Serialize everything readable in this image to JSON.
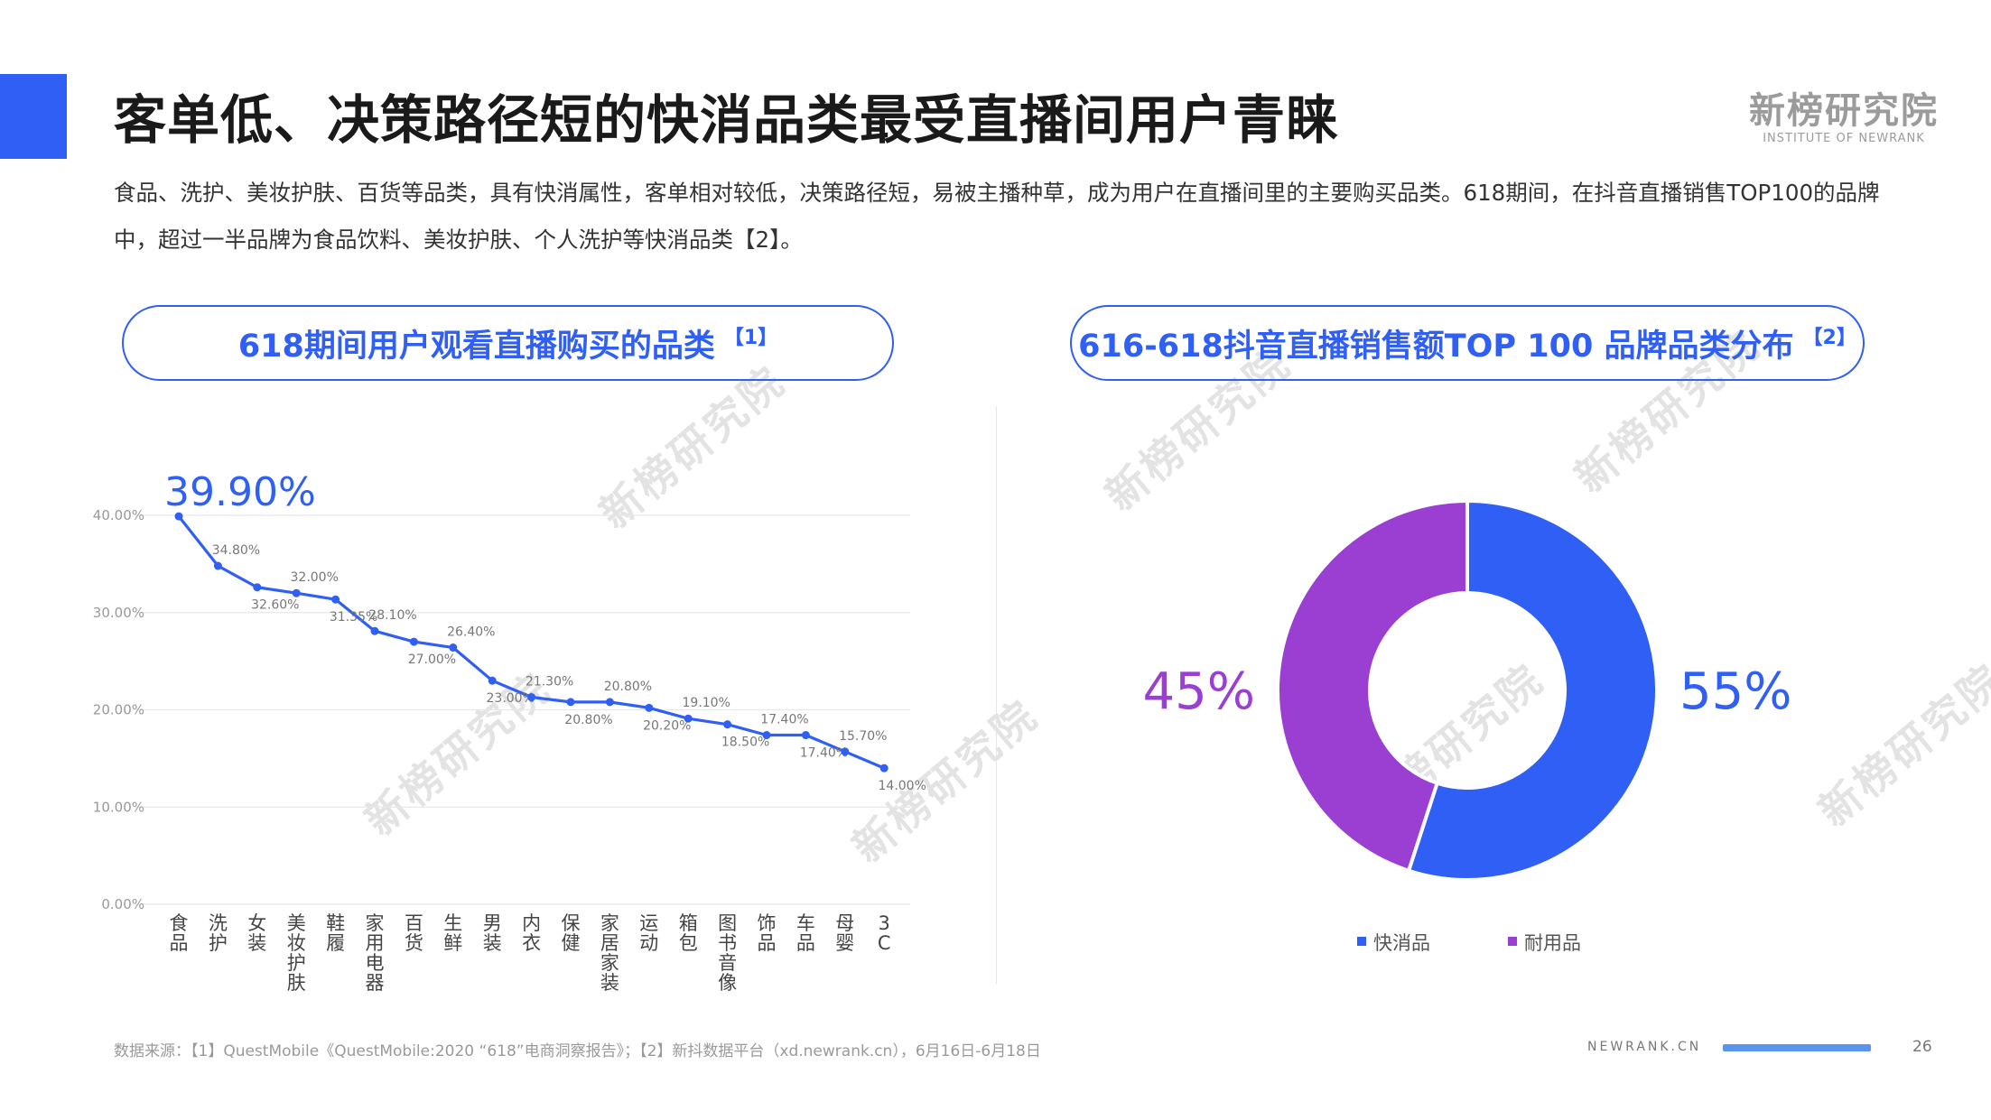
{
  "header": {
    "title": "客单低、决策路径短的快消品类最受直播间用户青睐",
    "logo_cn": "新榜研究院",
    "logo_en": "INSTITUTE OF NEWRANK",
    "description": "食品、洗护、美妆护肤、百货等品类，具有快消属性，客单相对较低，决策路径短，易被主播种草，成为用户在直播间里的主要购买品类。618期间，在抖音直播销售TOP100的品牌中，超过一半品牌为食品饮料、美妆护肤、个人洗护等快消品类【2】。"
  },
  "left_panel": {
    "title": "618期间用户观看直播购买的品类",
    "ref": "【1】"
  },
  "right_panel": {
    "title": "616-618抖音直播销售额TOP 100 品牌品类分布",
    "ref": "【2】"
  },
  "chart_data": [
    {
      "type": "line",
      "categories": [
        "食品",
        "洗护",
        "女装",
        "美妆护肤",
        "鞋履",
        "家用电器",
        "百货",
        "生鲜",
        "男装",
        "内衣",
        "保健",
        "家居家装",
        "运动",
        "箱包",
        "图书音像",
        "饰品",
        "车品",
        "母婴",
        "3C"
      ],
      "values": [
        39.9,
        34.8,
        32.6,
        32.0,
        31.35,
        28.1,
        27.0,
        26.4,
        23.0,
        21.3,
        20.8,
        20.8,
        20.2,
        19.1,
        18.5,
        17.4,
        17.4,
        15.7,
        14.0
      ],
      "labels": [
        "39.90%",
        "34.80%",
        "32.60%",
        "32.00%",
        "31.35%",
        "28.10%",
        "27.00%",
        "26.40%",
        "23.00%",
        "21.30%",
        "20.80%",
        "20.80%",
        "20.20%",
        "19.10%",
        "18.50%",
        "17.40%",
        "17.40%",
        "15.70%",
        "14.00%"
      ],
      "ylim": [
        0,
        40
      ],
      "yticks": [
        "0.00%",
        "10.00%",
        "20.00%",
        "30.00%",
        "40.00%"
      ],
      "grid": true,
      "color": "#2f5ff5"
    },
    {
      "type": "pie",
      "donut": true,
      "slices": [
        {
          "name": "快消品",
          "value": 55,
          "label": "55%",
          "color": "#2f5ff5"
        },
        {
          "name": "耐用品",
          "value": 45,
          "label": "45%",
          "color": "#9a3fd1"
        }
      ],
      "legend": "bottom"
    }
  ],
  "footer": {
    "source": "数据来源：【1】QuestMobile《QuestMobile:2020 “618”电商洞察报告》；【2】新抖数据平台（xd.newrank.cn），6月16日-6月18日",
    "site": "NEWRANK.CN",
    "page": "26"
  }
}
